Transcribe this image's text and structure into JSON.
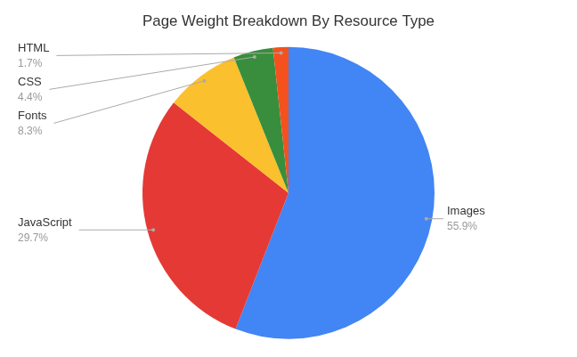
{
  "chart_data": {
    "type": "pie",
    "title": "Page Weight Breakdown By Resource Type",
    "categories": [
      "Images",
      "JavaScript",
      "Fonts",
      "CSS",
      "HTML"
    ],
    "values": [
      55.9,
      29.7,
      8.3,
      4.4,
      1.7
    ],
    "value_labels": [
      "55.9%",
      "29.7%",
      "8.3%",
      "4.4%",
      "1.7%"
    ],
    "colors": [
      "#4285F4",
      "#E53935",
      "#FBC02D",
      "#388E3C",
      "#F4511E"
    ],
    "data_labels": true
  }
}
